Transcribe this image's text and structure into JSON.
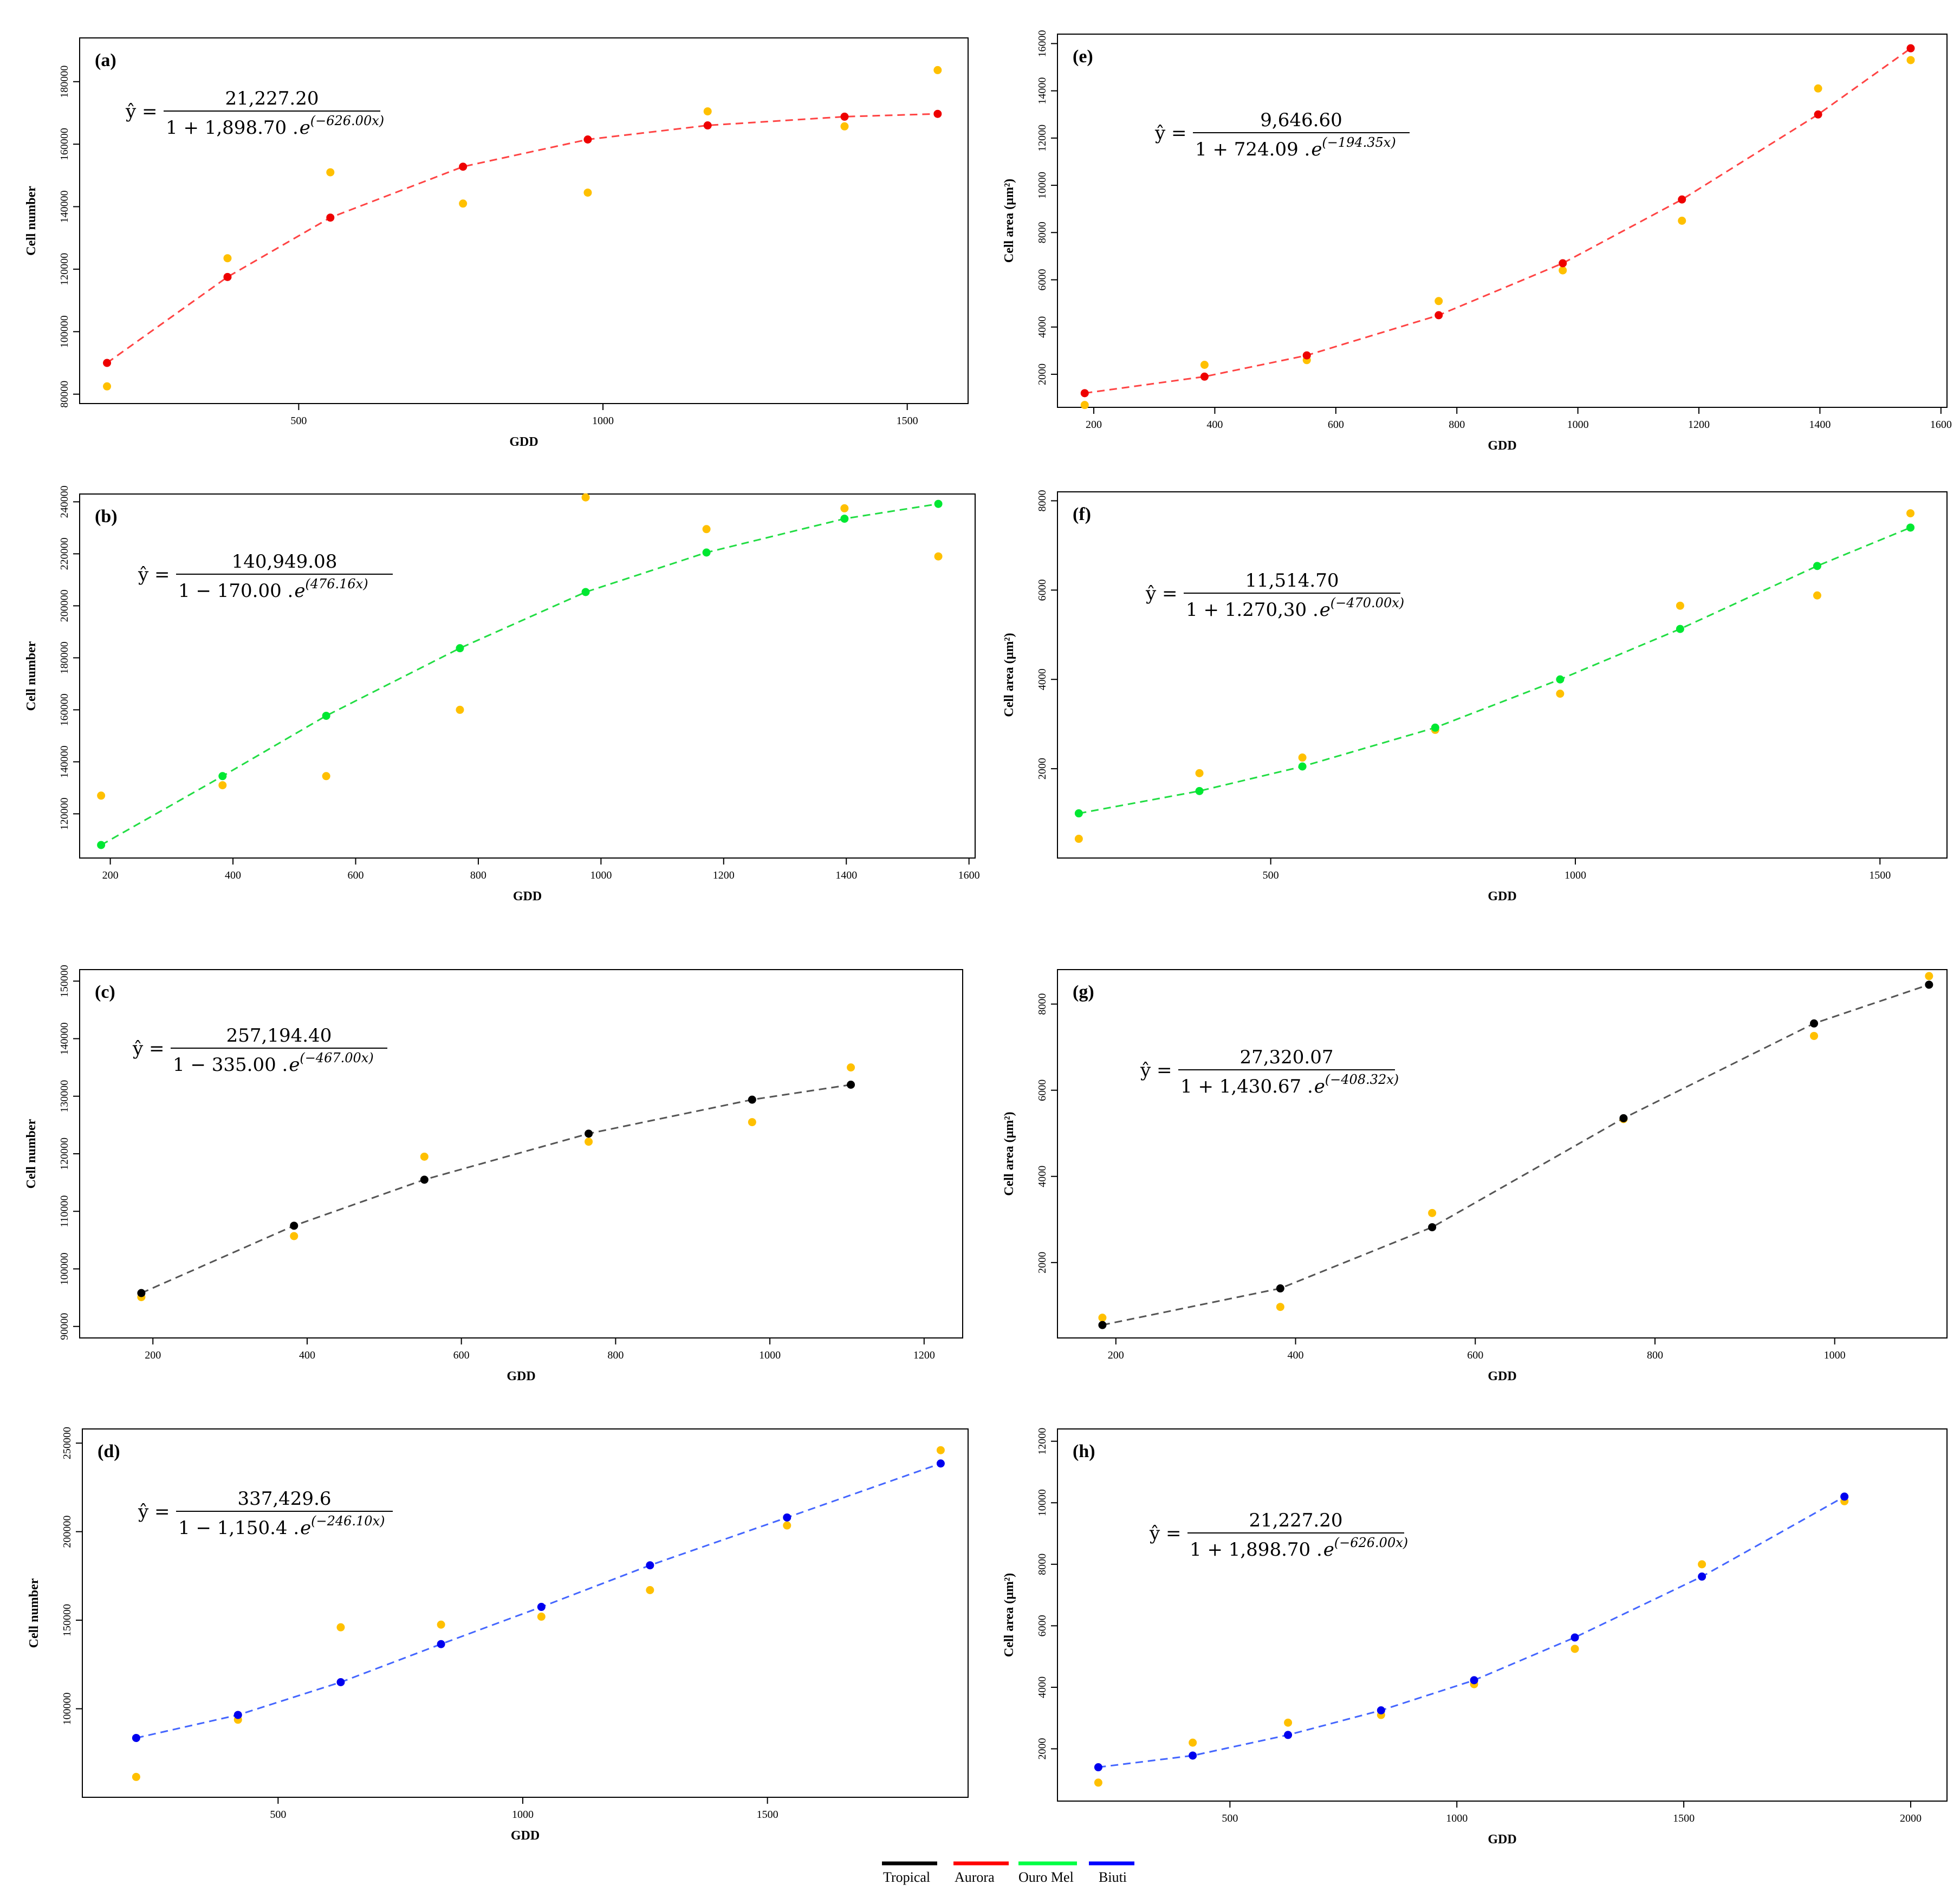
{
  "legend": [
    {
      "name": "Tropical",
      "color": "#000000"
    },
    {
      "name": "Aurora",
      "color": "#ff0000"
    },
    {
      "name": "Ouro Mel",
      "color": "#00ff44"
    },
    {
      "name": "Biuti",
      "color": "#0000ff"
    }
  ],
  "observed_color": "#ffc000",
  "chart_data": [
    {
      "id": "a",
      "label": "(a)",
      "type": "scatter",
      "xlabel": "GDD",
      "ylabel": "Cell number",
      "xlim": [
        140,
        1600
      ],
      "ylim": [
        77000,
        194000
      ],
      "xticks": [
        500,
        1000,
        1500
      ],
      "yticks": [
        80000,
        100000,
        120000,
        140000,
        160000,
        180000
      ],
      "line_color": "#ff4444",
      "fitted_color": "#ee0000",
      "equation": {
        "numerator": "21,227.20",
        "denominator": "1 + 1,898.70 . ",
        "exponent": "(−626.00x)"
      },
      "x": [
        185,
        383,
        552,
        770,
        975,
        1172,
        1397,
        1550
      ],
      "fitted": [
        90000,
        117500,
        136500,
        152800,
        161500,
        166000,
        168800,
        169700
      ],
      "observed": [
        82500,
        123500,
        151000,
        141000,
        144500,
        170500,
        165700,
        183700
      ]
    },
    {
      "id": "b",
      "label": "(b)",
      "type": "scatter",
      "xlabel": "GDD",
      "ylabel": "Cell number",
      "xlim": [
        150,
        1610
      ],
      "ylim": [
        103000,
        243000
      ],
      "xticks": [
        200,
        400,
        600,
        800,
        1000,
        1200,
        1400,
        1600
      ],
      "yticks": [
        120000,
        140000,
        160000,
        180000,
        200000,
        220000,
        240000
      ],
      "line_color": "#22dd44",
      "fitted_color": "#00e832",
      "equation": {
        "numerator": "140,949.08",
        "denominator": "1 − 170.00 . ",
        "exponent": "(476.16x)"
      },
      "x": [
        185,
        383,
        552,
        770,
        975,
        1172,
        1397,
        1550
      ],
      "fitted": [
        108000,
        134500,
        157700,
        183700,
        205300,
        220500,
        233500,
        239200
      ],
      "observed": [
        127000,
        131000,
        134500,
        160000,
        241700,
        229500,
        237500,
        219000
      ]
    },
    {
      "id": "c",
      "label": "(c)",
      "type": "scatter",
      "xlabel": "GDD",
      "ylabel": "Cell number",
      "xlim": [
        105,
        1250
      ],
      "ylim": [
        88000,
        152000
      ],
      "xticks": [
        200,
        400,
        600,
        800,
        1000,
        1200
      ],
      "yticks": [
        90000,
        100000,
        110000,
        120000,
        130000,
        140000,
        150000
      ],
      "line_color": "#555555",
      "fitted_color": "#000000",
      "equation": {
        "numerator": "257,194.40",
        "denominator": "1 − 335.00 . ",
        "exponent": "(−467.00x)"
      },
      "x": [
        185,
        383,
        552,
        765,
        977,
        1105
      ],
      "fitted": [
        95800,
        107500,
        115500,
        123500,
        129400,
        132000
      ],
      "observed": [
        95100,
        105700,
        119500,
        122100,
        125500,
        135000
      ]
    },
    {
      "id": "d",
      "label": "(d)",
      "type": "scatter",
      "xlabel": "GDD",
      "ylabel": "Cell number",
      "xlim": [
        100,
        1910
      ],
      "ylim": [
        50000,
        258000
      ],
      "xticks": [
        500,
        1000,
        1500
      ],
      "yticks": [
        100000,
        150000,
        200000,
        250000
      ],
      "line_color": "#4466ff",
      "fitted_color": "#0000ee",
      "equation": {
        "numerator": "337,429.6",
        "denominator": "1 − 1,150.4 . ",
        "exponent": "(−246.10x)"
      },
      "x": [
        210,
        418,
        628,
        833,
        1038,
        1260,
        1540,
        1854
      ],
      "fitted": [
        83500,
        96500,
        115000,
        136500,
        157500,
        181000,
        208000,
        238500
      ],
      "observed": [
        61500,
        93800,
        146000,
        147500,
        152000,
        167000,
        203500,
        246000
      ]
    },
    {
      "id": "e",
      "label": "(e)",
      "type": "scatter",
      "xlabel": "GDD",
      "ylabel": "Cell area (µm²)",
      "xlim": [
        140,
        1610
      ],
      "ylim": [
        600,
        16400
      ],
      "xticks": [
        200,
        400,
        600,
        800,
        1000,
        1200,
        1400,
        1600
      ],
      "yticks": [
        2000,
        4000,
        6000,
        8000,
        10000,
        12000,
        14000,
        16000
      ],
      "line_color": "#ff4444",
      "fitted_color": "#ee0000",
      "equation": {
        "numerator": "9,646.60",
        "denominator": "1 + 724.09 . ",
        "exponent": "(−194.35x)"
      },
      "x": [
        185,
        383,
        552,
        770,
        975,
        1172,
        1397,
        1550
      ],
      "fitted": [
        1200,
        1900,
        2800,
        4500,
        6700,
        9400,
        13000,
        15800
      ],
      "observed": [
        700,
        2400,
        2600,
        5100,
        6400,
        8500,
        14100,
        15300
      ]
    },
    {
      "id": "f",
      "label": "(f)",
      "type": "scatter",
      "xlabel": "GDD",
      "ylabel": "Cell area (µm²)",
      "xlim": [
        150,
        1610
      ],
      "ylim": [
        0,
        8200
      ],
      "xticks": [
        500,
        1000,
        1500
      ],
      "yticks": [
        2000,
        4000,
        6000,
        8000
      ],
      "line_color": "#22dd44",
      "fitted_color": "#00e832",
      "equation": {
        "numerator": "11,514.70",
        "denominator": "1 + 1.270,30 . ",
        "exponent": "(−470.00x)"
      },
      "x": [
        185,
        383,
        552,
        770,
        975,
        1172,
        1397,
        1550
      ],
      "fitted": [
        1000,
        1500,
        2050,
        2920,
        4000,
        5130,
        6540,
        7400
      ],
      "observed": [
        430,
        1900,
        2250,
        2870,
        3680,
        5650,
        5880,
        7720
      ]
    },
    {
      "id": "g",
      "label": "(g)",
      "type": "scatter",
      "xlabel": "GDD",
      "ylabel": "Cell area (µm²)",
      "xlim": [
        135,
        1125
      ],
      "ylim": [
        250,
        8800
      ],
      "xticks": [
        200,
        400,
        600,
        800,
        1000
      ],
      "yticks": [
        2000,
        4000,
        6000,
        8000
      ],
      "line_color": "#555555",
      "fitted_color": "#000000",
      "equation": {
        "numerator": "27,320.07",
        "denominator": "1 + 1,430.67 . ",
        "exponent": "(−408.32x)"
      },
      "x": [
        185,
        383,
        552,
        765,
        977,
        1105
      ],
      "fitted": [
        550,
        1400,
        2820,
        5350,
        7550,
        8450
      ],
      "observed": [
        720,
        970,
        3150,
        5330,
        7260,
        8650
      ]
    },
    {
      "id": "h",
      "label": "(h)",
      "type": "scatter",
      "xlabel": "GDD",
      "ylabel": "Cell area (µm²)",
      "xlim": [
        120,
        2080
      ],
      "ylim": [
        300,
        12400
      ],
      "xticks": [
        500,
        1000,
        1500,
        2000
      ],
      "yticks": [
        2000,
        4000,
        6000,
        8000,
        10000,
        12000
      ],
      "line_color": "#4466ff",
      "fitted_color": "#0000ee",
      "equation": {
        "numerator": "21,227.20",
        "denominator": "1 + 1,898.70 . ",
        "exponent": "(−626.00x)"
      },
      "x": [
        210,
        418,
        628,
        833,
        1038,
        1260,
        1540,
        1854
      ],
      "fitted": [
        1400,
        1780,
        2450,
        3250,
        4230,
        5620,
        7600,
        10200
      ],
      "observed": [
        900,
        2200,
        2850,
        3100,
        4100,
        5250,
        8000,
        10050
      ]
    }
  ]
}
